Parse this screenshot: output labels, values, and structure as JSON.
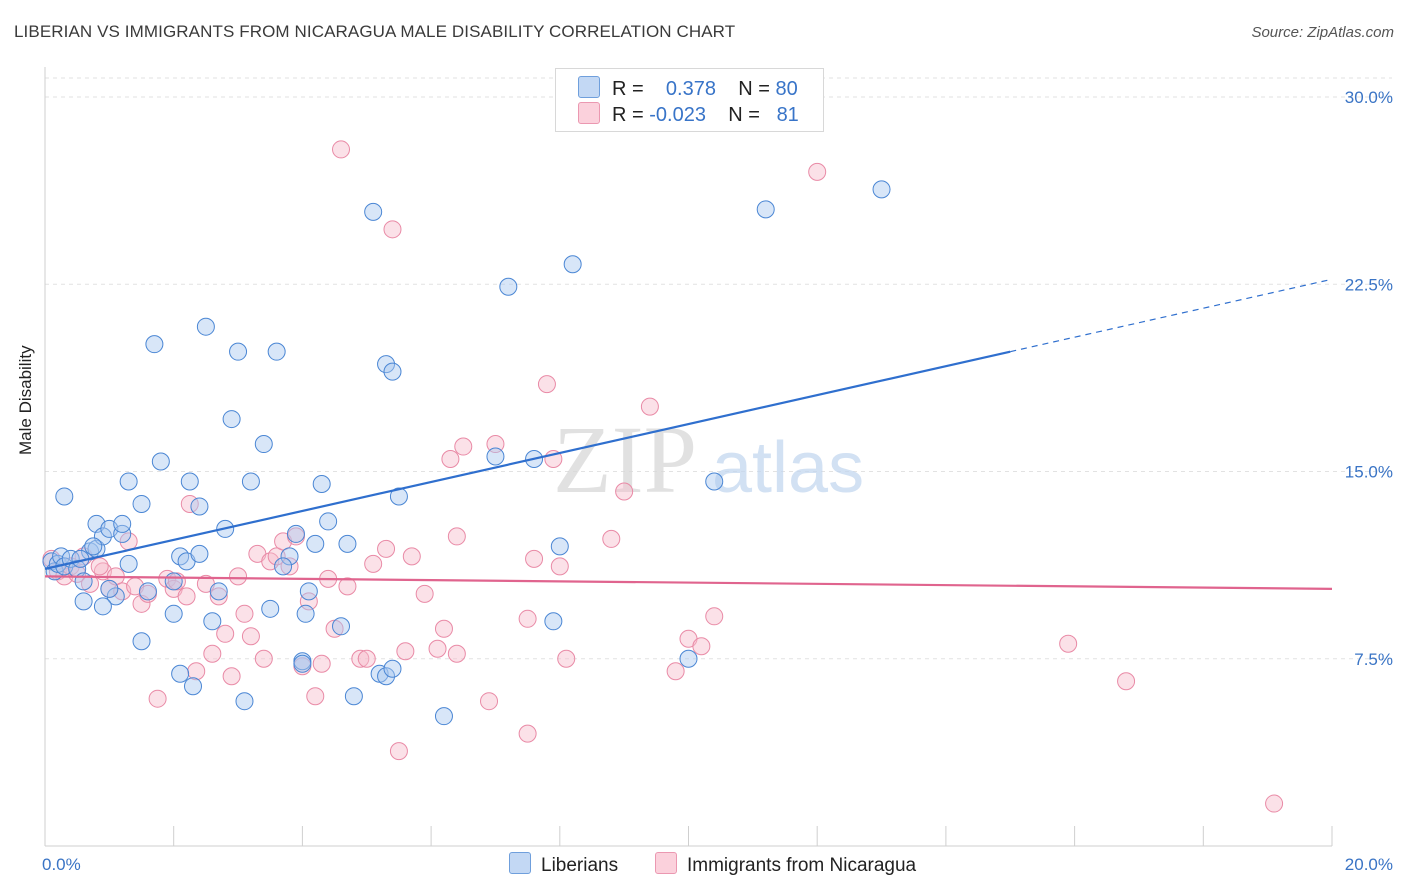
{
  "header": {
    "title": "LIBERIAN VS IMMIGRANTS FROM NICARAGUA MALE DISABILITY CORRELATION CHART",
    "source": "Source: ZipAtlas.com"
  },
  "legend": {
    "row1": {
      "r_label": "R =",
      "r_value": "0.378",
      "n_label": "N =",
      "n_value": "80"
    },
    "row2": {
      "r_label": "R =",
      "r_value": "-0.023",
      "n_label": "N =",
      "n_value": "81"
    }
  },
  "bottom_legend": {
    "series1": "Liberians",
    "series2": "Immigrants from Nicaragua"
  },
  "watermark": {
    "zip": "ZIP",
    "atlas": "atlas"
  },
  "colors": {
    "blue_fill": "#a9c8f0",
    "blue_stroke": "#4a86d4",
    "blue_line": "#2f6fce",
    "pink_fill": "#f6bccd",
    "pink_stroke": "#e98aa6",
    "pink_line": "#e0648e",
    "axis_text": "#3a74c5",
    "grid": "#e2e2e2"
  },
  "chart_data": {
    "type": "scatter",
    "xlabel": "",
    "ylabel": "Male Disability",
    "xlim": [
      0,
      20
    ],
    "ylim": [
      0,
      30
    ],
    "x_ticks": [
      "0.0%",
      "20.0%"
    ],
    "y_ticks": [
      {
        "value": 7.5,
        "label": "7.5%"
      },
      {
        "value": 15,
        "label": "15.0%"
      },
      {
        "value": 22.5,
        "label": "22.5%"
      },
      {
        "value": 30,
        "label": "30.0%"
      }
    ],
    "grid": true,
    "legend_position": "top-center",
    "series": [
      {
        "name": "Liberians",
        "r": 0.378,
        "n": 80,
        "trend": {
          "x0": 0,
          "y0": 11.1,
          "x1": 15,
          "y1": 19.8,
          "dash_to_x": 20,
          "dash_to_y": 22.7
        },
        "points": [
          [
            0.1,
            11.4
          ],
          [
            0.15,
            11.0
          ],
          [
            0.2,
            11.3
          ],
          [
            0.25,
            11.6
          ],
          [
            0.3,
            11.2
          ],
          [
            0.4,
            11.5
          ],
          [
            0.5,
            11.1
          ],
          [
            0.6,
            10.6
          ],
          [
            0.7,
            11.8
          ],
          [
            0.8,
            11.9
          ],
          [
            0.3,
            14.0
          ],
          [
            0.8,
            12.9
          ],
          [
            0.9,
            12.4
          ],
          [
            1.0,
            12.7
          ],
          [
            1.2,
            12.5
          ],
          [
            1.2,
            12.9
          ],
          [
            1.3,
            14.6
          ],
          [
            1.5,
            13.7
          ],
          [
            1.6,
            10.2
          ],
          [
            1.7,
            20.1
          ],
          [
            1.8,
            15.4
          ],
          [
            2.0,
            10.6
          ],
          [
            1.1,
            10.0
          ],
          [
            0.9,
            9.6
          ],
          [
            0.6,
            9.8
          ],
          [
            1.5,
            8.2
          ],
          [
            2.0,
            9.3
          ],
          [
            2.1,
            6.9
          ],
          [
            2.1,
            11.6
          ],
          [
            2.2,
            11.4
          ],
          [
            2.25,
            14.6
          ],
          [
            2.3,
            6.4
          ],
          [
            2.4,
            13.6
          ],
          [
            2.4,
            11.7
          ],
          [
            2.5,
            20.8
          ],
          [
            2.6,
            9.0
          ],
          [
            2.7,
            10.2
          ],
          [
            2.8,
            12.7
          ],
          [
            2.9,
            17.1
          ],
          [
            3.0,
            19.8
          ],
          [
            3.1,
            5.8
          ],
          [
            3.2,
            14.6
          ],
          [
            3.4,
            16.1
          ],
          [
            3.5,
            9.5
          ],
          [
            3.6,
            19.8
          ],
          [
            3.8,
            11.6
          ],
          [
            3.9,
            12.5
          ],
          [
            4.0,
            7.4
          ],
          [
            4.05,
            9.3
          ],
          [
            4.1,
            10.2
          ],
          [
            4.2,
            12.1
          ],
          [
            4.3,
            14.5
          ],
          [
            4.4,
            13.0
          ],
          [
            4.6,
            8.8
          ],
          [
            4.7,
            12.1
          ],
          [
            4.8,
            6.0
          ],
          [
            5.1,
            25.4
          ],
          [
            5.2,
            6.9
          ],
          [
            5.3,
            19.3
          ],
          [
            5.4,
            19.0
          ],
          [
            5.5,
            14.0
          ],
          [
            5.3,
            6.8
          ],
          [
            5.4,
            7.1
          ],
          [
            6.2,
            5.2
          ],
          [
            7.0,
            15.6
          ],
          [
            7.2,
            22.4
          ],
          [
            7.6,
            15.5
          ],
          [
            7.9,
            9.0
          ],
          [
            8.0,
            12.0
          ],
          [
            8.2,
            23.3
          ],
          [
            10.0,
            7.5
          ],
          [
            10.4,
            14.6
          ],
          [
            11.2,
            25.5
          ],
          [
            13.0,
            26.3
          ],
          [
            4.0,
            7.3
          ],
          [
            0.55,
            11.5
          ],
          [
            1.3,
            11.3
          ],
          [
            0.75,
            12.0
          ],
          [
            1.0,
            10.3
          ],
          [
            3.7,
            11.2
          ]
        ]
      },
      {
        "name": "Immigrants from Nicaragua",
        "r": -0.023,
        "n": 81,
        "trend": {
          "x0": 0,
          "y0": 10.8,
          "x1": 20,
          "y1": 10.3
        },
        "points": [
          [
            0.1,
            11.5
          ],
          [
            0.2,
            11.0
          ],
          [
            0.3,
            10.8
          ],
          [
            0.4,
            11.2
          ],
          [
            0.5,
            10.9
          ],
          [
            0.6,
            11.6
          ],
          [
            0.7,
            10.5
          ],
          [
            0.9,
            11.0
          ],
          [
            1.0,
            10.3
          ],
          [
            1.1,
            10.8
          ],
          [
            1.2,
            10.2
          ],
          [
            1.3,
            12.2
          ],
          [
            1.4,
            10.4
          ],
          [
            1.5,
            9.7
          ],
          [
            1.6,
            10.1
          ],
          [
            1.75,
            5.9
          ],
          [
            1.9,
            10.7
          ],
          [
            2.0,
            10.3
          ],
          [
            2.2,
            10.0
          ],
          [
            2.25,
            13.7
          ],
          [
            2.35,
            7.0
          ],
          [
            2.5,
            10.5
          ],
          [
            2.6,
            7.7
          ],
          [
            2.7,
            10.0
          ],
          [
            2.8,
            8.5
          ],
          [
            2.9,
            6.8
          ],
          [
            3.0,
            10.8
          ],
          [
            3.1,
            9.3
          ],
          [
            3.2,
            8.4
          ],
          [
            3.3,
            11.7
          ],
          [
            3.4,
            7.5
          ],
          [
            3.5,
            11.4
          ],
          [
            3.6,
            11.6
          ],
          [
            3.7,
            12.2
          ],
          [
            3.8,
            11.2
          ],
          [
            3.9,
            12.4
          ],
          [
            4.0,
            7.2
          ],
          [
            4.1,
            9.8
          ],
          [
            4.2,
            6.0
          ],
          [
            4.3,
            7.3
          ],
          [
            4.4,
            10.7
          ],
          [
            4.5,
            8.7
          ],
          [
            4.6,
            27.9
          ],
          [
            4.7,
            10.4
          ],
          [
            4.9,
            7.5
          ],
          [
            5.0,
            7.5
          ],
          [
            5.1,
            11.3
          ],
          [
            5.3,
            11.9
          ],
          [
            5.4,
            24.7
          ],
          [
            5.5,
            3.8
          ],
          [
            5.6,
            7.8
          ],
          [
            5.7,
            11.6
          ],
          [
            5.9,
            10.1
          ],
          [
            6.1,
            7.9
          ],
          [
            6.2,
            8.7
          ],
          [
            6.3,
            15.5
          ],
          [
            6.4,
            7.7
          ],
          [
            6.5,
            16.0
          ],
          [
            6.4,
            12.4
          ],
          [
            6.9,
            5.8
          ],
          [
            7.0,
            16.1
          ],
          [
            7.5,
            9.1
          ],
          [
            7.5,
            4.5
          ],
          [
            7.6,
            11.5
          ],
          [
            7.8,
            18.5
          ],
          [
            7.9,
            15.5
          ],
          [
            8.0,
            11.2
          ],
          [
            8.1,
            7.5
          ],
          [
            8.8,
            12.3
          ],
          [
            9.0,
            14.2
          ],
          [
            9.4,
            17.6
          ],
          [
            9.8,
            7.0
          ],
          [
            10.0,
            8.3
          ],
          [
            10.4,
            9.2
          ],
          [
            10.2,
            8.0
          ],
          [
            12.0,
            27.0
          ],
          [
            15.9,
            8.1
          ],
          [
            16.8,
            6.6
          ],
          [
            19.1,
            1.7
          ],
          [
            0.85,
            11.2
          ],
          [
            2.05,
            10.6
          ]
        ]
      }
    ]
  }
}
